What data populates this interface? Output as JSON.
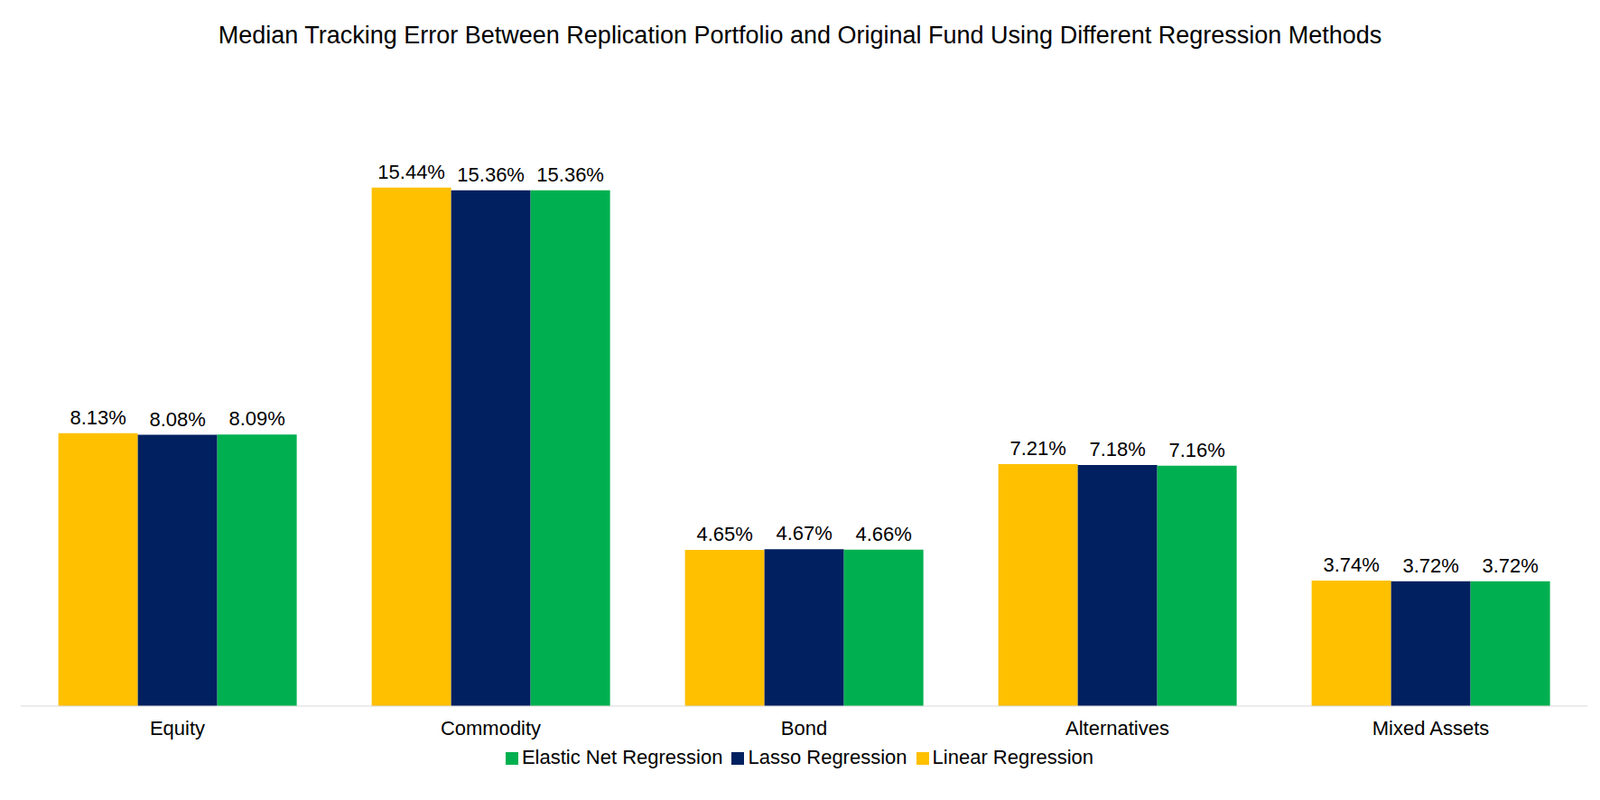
{
  "chart_data": {
    "type": "bar",
    "title": "Median Tracking Error Between Replication Portfolio and Original Fund Using Different Regression Methods",
    "categories": [
      "Equity",
      "Commodity",
      "Bond",
      "Alternatives",
      "Mixed Assets"
    ],
    "series": [
      {
        "name": "Linear Regression",
        "color": "#FFC000",
        "values": [
          8.13,
          15.44,
          4.65,
          7.21,
          3.74
        ],
        "value_labels": [
          "8.13%",
          "15.44%",
          "4.65%",
          "7.21%",
          "3.74%"
        ]
      },
      {
        "name": "Lasso Regression",
        "color": "#002060",
        "values": [
          8.08,
          15.36,
          4.67,
          7.18,
          3.72
        ],
        "value_labels": [
          "8.08%",
          "15.36%",
          "4.67%",
          "7.18%",
          "3.72%"
        ]
      },
      {
        "name": "Elastic Net Regression",
        "color": "#00B050",
        "values": [
          8.09,
          15.36,
          4.66,
          7.16,
          3.72
        ],
        "value_labels": [
          "8.09%",
          "15.36%",
          "4.66%",
          "7.16%",
          "3.72%"
        ]
      }
    ],
    "ylim": [
      0,
      16
    ],
    "data_labels": true,
    "tick_labels": "x",
    "legend": "bottom"
  }
}
